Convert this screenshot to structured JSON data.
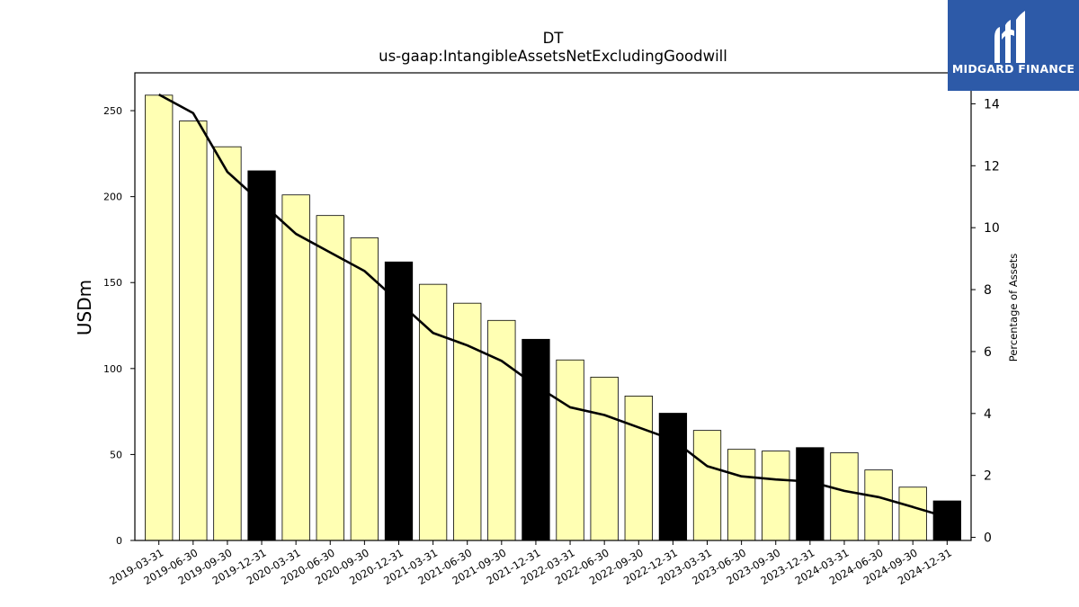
{
  "logo": {
    "text": "MIDGARD FINANCE"
  },
  "chart_data": {
    "type": "bar",
    "title": "DT",
    "subtitle": "us-gaap:IntangibleAssetsNetExcludingGoodwill",
    "ylabel": "USDm",
    "y2label": "Percentage of Assets",
    "ylim": [
      0,
      272
    ],
    "y2lim": [
      -0.1,
      15.0
    ],
    "yticks": [
      0,
      50,
      100,
      150,
      200,
      250
    ],
    "y2ticks": [
      0,
      2,
      4,
      6,
      8,
      10,
      12,
      14
    ],
    "categories": [
      "2019-03-31",
      "2019-06-30",
      "2019-09-30",
      "2019-12-31",
      "2020-03-31",
      "2020-06-30",
      "2020-09-30",
      "2020-12-31",
      "2021-03-31",
      "2021-06-30",
      "2021-09-30",
      "2021-12-31",
      "2022-03-31",
      "2022-06-30",
      "2022-09-30",
      "2022-12-31",
      "2023-03-31",
      "2023-06-30",
      "2023-09-30",
      "2023-12-31",
      "2024-03-31",
      "2024-06-30",
      "2024-09-30",
      "2024-12-31"
    ],
    "series": [
      {
        "type": "bar",
        "values": [
          259,
          244,
          229,
          215,
          201,
          189,
          176,
          162,
          149,
          138,
          128,
          117,
          105,
          95,
          84,
          74,
          64,
          53,
          52,
          54,
          51,
          41,
          31,
          23
        ],
        "colors": [
          "#ffffb3",
          "#ffffb3",
          "#ffffb3",
          "#000000",
          "#ffffb3",
          "#ffffb3",
          "#ffffb3",
          "#000000",
          "#ffffb3",
          "#ffffb3",
          "#ffffb3",
          "#000000",
          "#ffffb3",
          "#ffffb3",
          "#ffffb3",
          "#000000",
          "#ffffb3",
          "#ffffb3",
          "#ffffb3",
          "#000000",
          "#ffffb3",
          "#ffffb3",
          "#ffffb3",
          "#000000"
        ]
      },
      {
        "type": "line",
        "axis": "right",
        "color": "#000000",
        "values": [
          14.3,
          13.7,
          11.8,
          10.8,
          9.8,
          9.2,
          8.6,
          7.6,
          6.6,
          6.2,
          5.7,
          4.9,
          4.2,
          3.95,
          3.55,
          3.15,
          2.3,
          1.97,
          1.87,
          1.8,
          1.5,
          1.3,
          0.98,
          0.65
        ]
      }
    ],
    "grid": false,
    "legend": "none"
  }
}
